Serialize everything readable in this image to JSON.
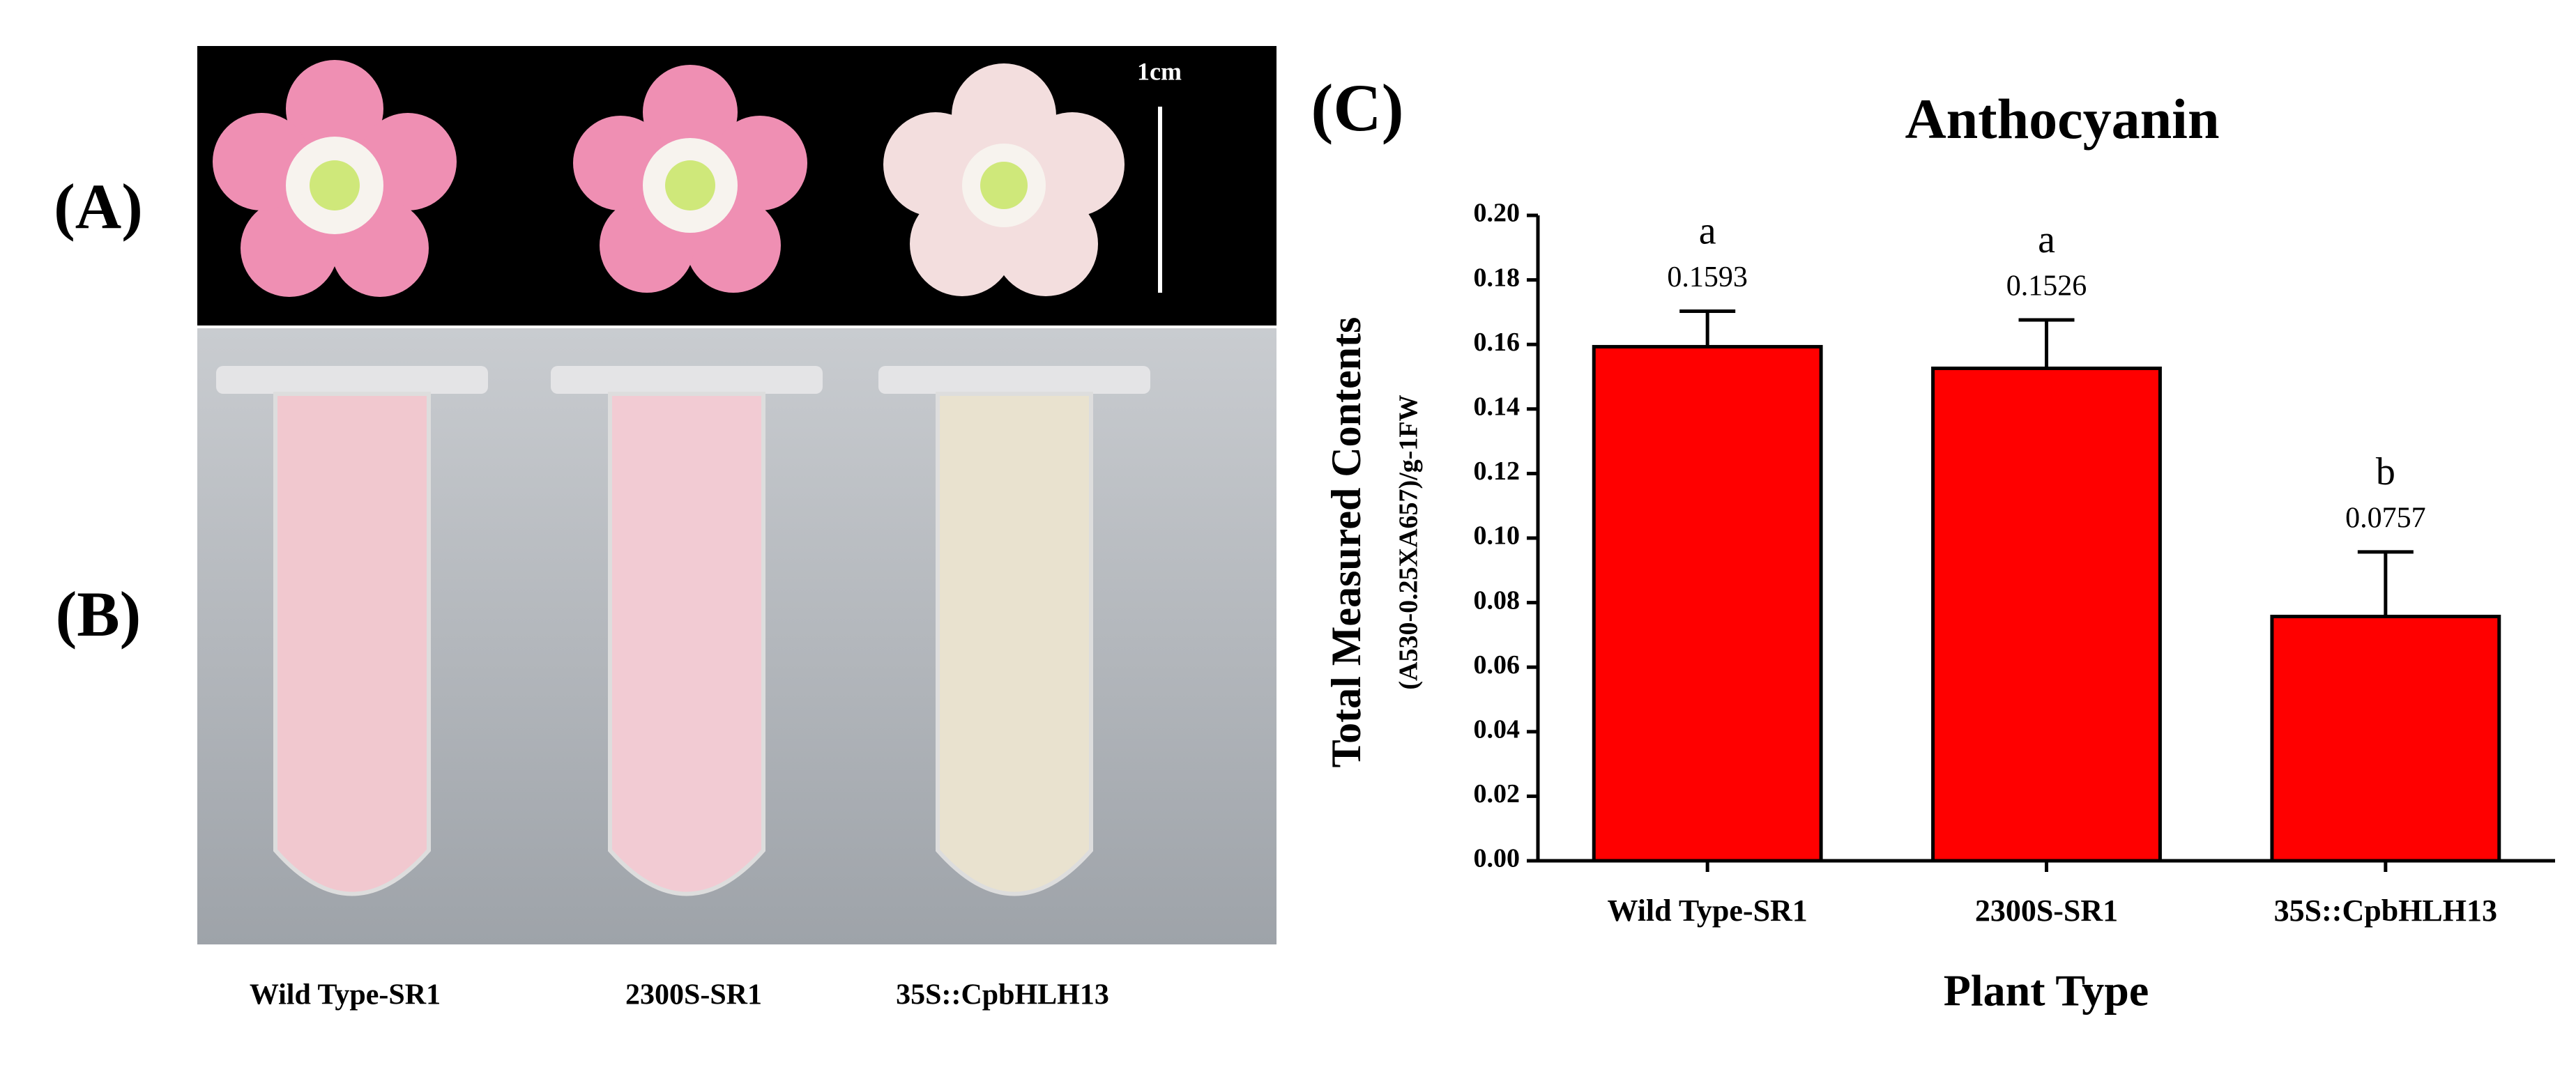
{
  "panels": {
    "a_label": "(A)",
    "b_label": "(B)",
    "scale_bar": "1cm",
    "photo_labels": [
      "Wild Type-SR1",
      "2300S-SR1",
      "35S::CpbHLH13"
    ]
  },
  "chart_data": {
    "type": "bar",
    "panel_label": "(C)",
    "title": "Anthocyanin",
    "y_label": "Total Measured Contents",
    "y_sublabel": "(A530-0.25XA657)/g-1FW",
    "x_label": "Plant Type",
    "categories": [
      "Wild Type-SR1",
      "2300S-SR1",
      "35S::CpbHLH13"
    ],
    "values": [
      0.1593,
      0.1526,
      0.0757
    ],
    "errors": [
      0.011,
      0.015,
      0.02
    ],
    "significance": [
      "a",
      "a",
      "b"
    ],
    "color": "#ff0000",
    "ylim": [
      0,
      0.2
    ],
    "yticks": [
      {
        "value": 0,
        "label": "0.00"
      },
      {
        "value": 0.02,
        "label": "0.02"
      },
      {
        "value": 0.04,
        "label": "0.04"
      },
      {
        "value": 0.06,
        "label": "0.06"
      },
      {
        "value": 0.08,
        "label": "0.08"
      },
      {
        "value": 0.1,
        "label": "0.10"
      },
      {
        "value": 0.12,
        "label": "0.12"
      },
      {
        "value": 0.14,
        "label": "0.14"
      },
      {
        "value": 0.16,
        "label": "0.16"
      },
      {
        "value": 0.18,
        "label": "0.18"
      },
      {
        "value": 0.2,
        "label": "0.20"
      }
    ]
  }
}
